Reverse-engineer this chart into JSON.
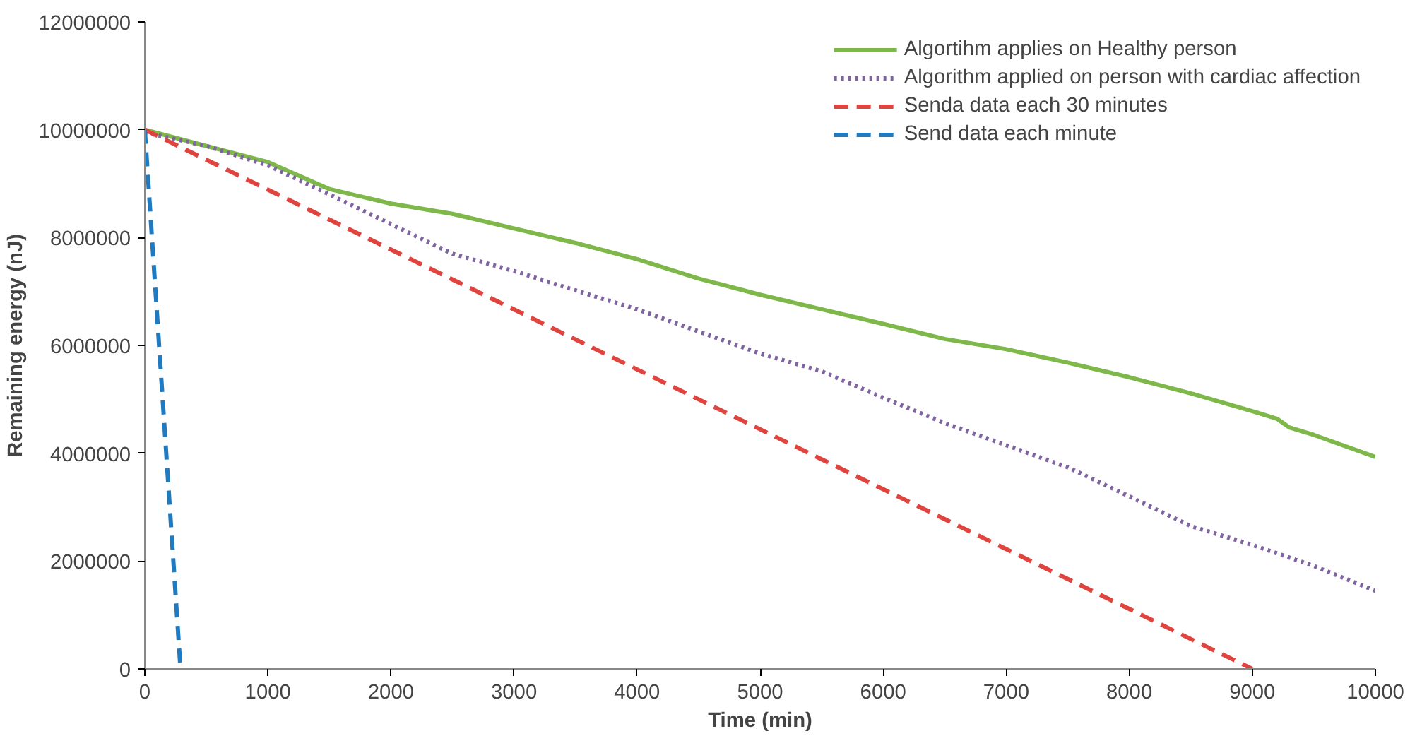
{
  "chart_data": {
    "type": "line",
    "xlabel": "Time (min)",
    "ylabel": "Remaining energy (nJ)",
    "xlim": [
      0,
      10000
    ],
    "ylim": [
      0,
      12000000
    ],
    "xticks": [
      0,
      1000,
      2000,
      3000,
      4000,
      5000,
      6000,
      7000,
      8000,
      9000,
      10000
    ],
    "yticks": [
      0,
      2000000,
      4000000,
      6000000,
      8000000,
      10000000,
      12000000
    ],
    "grid": false,
    "legend": "top right",
    "marker": "none",
    "series": [
      {
        "name": "Algortihm applies on Healthy person",
        "color": "#7fb84a",
        "line_style": "solid",
        "x": [
          0,
          500,
          1000,
          1500,
          2000,
          2500,
          3000,
          3500,
          4000,
          4500,
          5000,
          5500,
          6000,
          6500,
          7000,
          7500,
          8000,
          8500,
          9000,
          9200,
          9300,
          9500,
          10000
        ],
        "values": [
          10000000,
          9700000,
          9400000,
          8900000,
          8630000,
          8440000,
          8170000,
          7900000,
          7600000,
          7240000,
          6940000,
          6670000,
          6400000,
          6120000,
          5930000,
          5680000,
          5410000,
          5110000,
          4780000,
          4640000,
          4480000,
          4340000,
          3930000
        ]
      },
      {
        "name": "Algorithm applied on person with cardiac affection",
        "color": "#8064a2",
        "line_style": "dotted",
        "x": [
          0,
          500,
          1000,
          1500,
          2000,
          2500,
          3000,
          3500,
          4000,
          4500,
          5000,
          5500,
          6000,
          6500,
          7000,
          7500,
          8000,
          8500,
          9000,
          9500,
          10000
        ],
        "values": [
          9950000,
          9700000,
          9340000,
          8800000,
          8250000,
          7700000,
          7380000,
          7020000,
          6670000,
          6260000,
          5850000,
          5520000,
          5030000,
          4560000,
          4150000,
          3740000,
          3200000,
          2650000,
          2300000,
          1910000,
          1450000
        ]
      },
      {
        "name": "Senda data each 30 minutes",
        "color": "#e0443e",
        "line_style": "dashed",
        "x": [
          0,
          9000
        ],
        "values": [
          10000000,
          0
        ]
      },
      {
        "name": "Send data each minute",
        "color": "#1f7ac0",
        "line_style": "dashed",
        "x": [
          0,
          290
        ],
        "values": [
          10000000,
          0
        ]
      }
    ]
  }
}
